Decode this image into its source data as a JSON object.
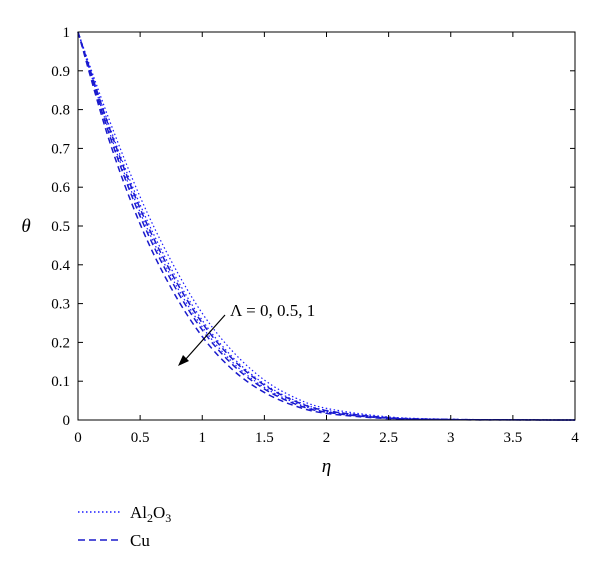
{
  "chart_data": {
    "type": "line",
    "xlabel": "η",
    "ylabel": "θ",
    "xlim": [
      0,
      4
    ],
    "ylim": [
      0,
      1
    ],
    "xticks": [
      "0",
      "0.5",
      "1",
      "1.5",
      "2",
      "2.5",
      "3",
      "3.5",
      "4"
    ],
    "yticks": [
      "0",
      "0.1",
      "0.2",
      "0.3",
      "0.4",
      "0.5",
      "0.6",
      "0.7",
      "0.8",
      "0.9",
      "1"
    ],
    "grid": false,
    "legend_position": "bottom-left",
    "legend": [
      {
        "label_main": "Al",
        "label_sub": "2",
        "label_tail": "O",
        "label_sub2": "3",
        "style": "dotted",
        "color": "#1a1aff"
      },
      {
        "label_main": "Cu",
        "label_sub": "",
        "label_tail": "",
        "label_sub2": "",
        "style": "dashed",
        "color": "#1a1acc"
      }
    ],
    "annotation": {
      "text": "Λ = 0, 0.5, 1"
    },
    "series": [
      {
        "material": "Al2O3",
        "lambda": 0,
        "style": "dotted",
        "x": [
          0,
          0.25,
          0.5,
          0.75,
          1.0,
          1.25,
          1.5,
          1.75,
          2.0,
          2.5,
          3.0,
          3.5,
          4.0
        ],
        "y": [
          1,
          0.775,
          0.575,
          0.41,
          0.275,
          0.175,
          0.103,
          0.057,
          0.03,
          0.008,
          0.002,
          0.0005,
          0
        ]
      },
      {
        "material": "Al2O3",
        "lambda": 0.5,
        "style": "dotted",
        "x": [
          0,
          0.25,
          0.5,
          0.75,
          1.0,
          1.25,
          1.5,
          1.75,
          2.0,
          2.5,
          3.0,
          3.5,
          4.0
        ],
        "y": [
          1,
          0.76,
          0.555,
          0.39,
          0.257,
          0.16,
          0.093,
          0.05,
          0.025,
          0.006,
          0.0015,
          0.0004,
          0
        ]
      },
      {
        "material": "Al2O3",
        "lambda": 1,
        "style": "dotted",
        "x": [
          0,
          0.25,
          0.5,
          0.75,
          1.0,
          1.25,
          1.5,
          1.75,
          2.0,
          2.5,
          3.0,
          3.5,
          4.0
        ],
        "y": [
          1,
          0.745,
          0.535,
          0.37,
          0.24,
          0.147,
          0.084,
          0.044,
          0.021,
          0.005,
          0.001,
          0.0003,
          0
        ]
      },
      {
        "material": "Cu",
        "lambda": 0,
        "style": "dashed",
        "x": [
          0,
          0.25,
          0.5,
          0.75,
          1.0,
          1.25,
          1.5,
          1.75,
          2.0,
          2.5,
          3.0,
          3.5,
          4.0
        ],
        "y": [
          1,
          0.755,
          0.545,
          0.38,
          0.25,
          0.155,
          0.09,
          0.048,
          0.024,
          0.006,
          0.0015,
          0.0004,
          0
        ]
      },
      {
        "material": "Cu",
        "lambda": 0.5,
        "style": "dashed",
        "x": [
          0,
          0.25,
          0.5,
          0.75,
          1.0,
          1.25,
          1.5,
          1.75,
          2.0,
          2.5,
          3.0,
          3.5,
          4.0
        ],
        "y": [
          1,
          0.738,
          0.525,
          0.36,
          0.232,
          0.141,
          0.08,
          0.041,
          0.02,
          0.0045,
          0.001,
          0.0003,
          0
        ]
      },
      {
        "material": "Cu",
        "lambda": 1,
        "style": "dashed",
        "x": [
          0,
          0.25,
          0.5,
          0.75,
          1.0,
          1.25,
          1.5,
          1.75,
          2.0,
          2.5,
          3.0,
          3.5,
          4.0
        ],
        "y": [
          1,
          0.722,
          0.505,
          0.34,
          0.215,
          0.128,
          0.071,
          0.036,
          0.017,
          0.0035,
          0.0008,
          0.0002,
          0
        ]
      }
    ]
  }
}
